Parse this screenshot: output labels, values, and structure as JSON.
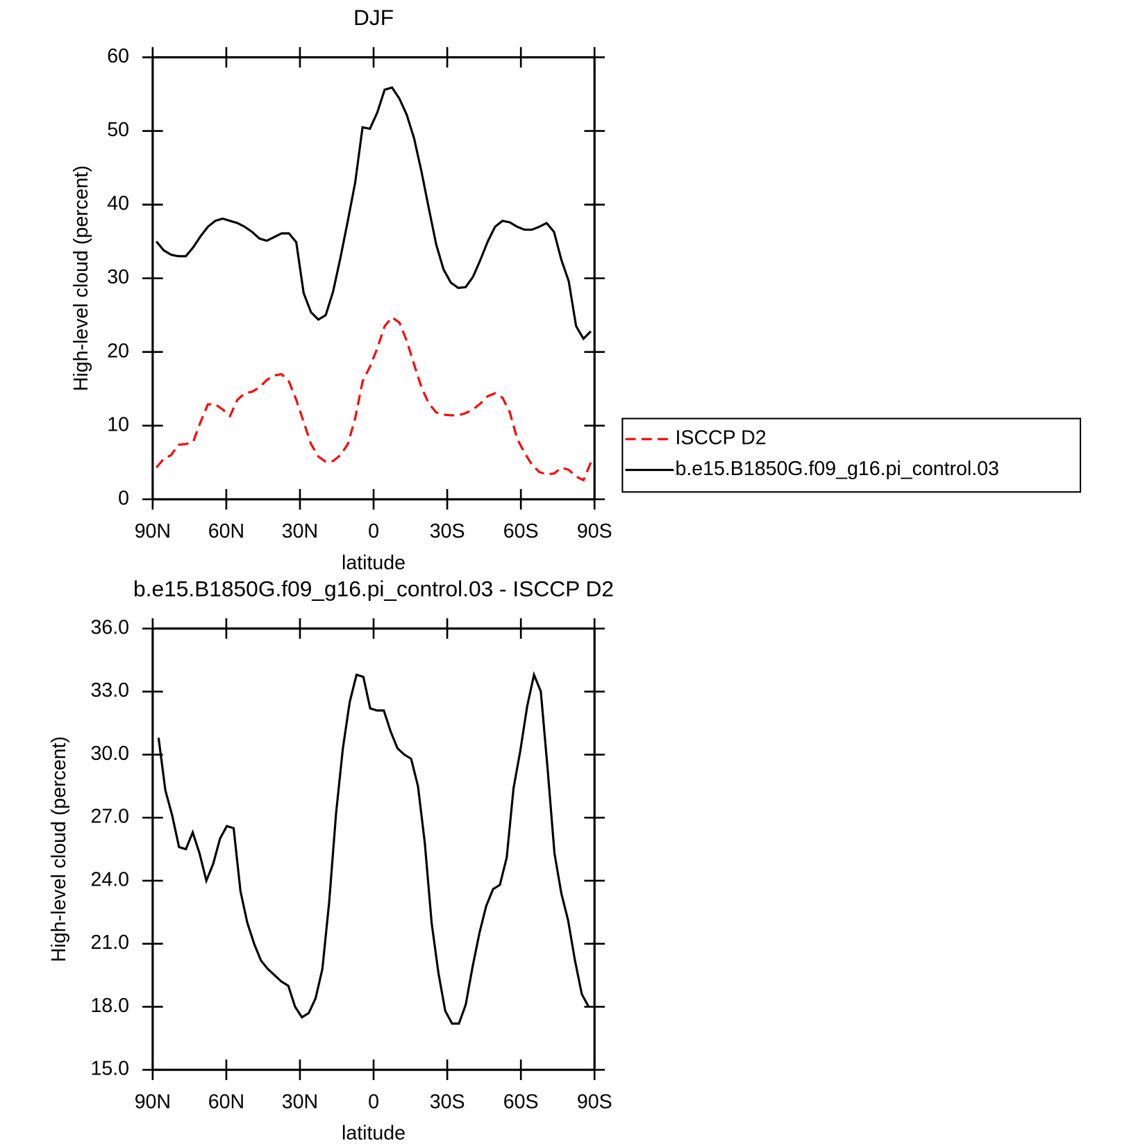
{
  "chart_data": [
    {
      "type": "line",
      "title": "DJF",
      "xlabel": "latitude",
      "ylabel": "High-level cloud (percent)",
      "xlim": [
        90,
        -90
      ],
      "xticks": [
        {
          "value": 90,
          "label": "90N"
        },
        {
          "value": 60,
          "label": "60N"
        },
        {
          "value": 30,
          "label": "30N"
        },
        0,
        {
          "value": -30,
          "label": "30S"
        },
        {
          "value": -60,
          "label": "60S"
        },
        {
          "value": -90,
          "label": "90S"
        }
      ],
      "ylim": [
        0,
        60
      ],
      "yticks": [
        0,
        10,
        20,
        30,
        40,
        50,
        60
      ],
      "legend": "right",
      "x": [
        88.5,
        85.5,
        82.5,
        79.5,
        76.5,
        73.5,
        70.5,
        67.5,
        64.5,
        61.5,
        58.5,
        55.5,
        52.5,
        49.5,
        46.5,
        43.5,
        40.5,
        37.5,
        34.5,
        31.5,
        28.5,
        25.5,
        22.5,
        19.5,
        16.5,
        13.5,
        10.5,
        7.5,
        4.5,
        1.5,
        -1.5,
        -4.5,
        -7.5,
        -10.5,
        -13.5,
        -16.5,
        -19.5,
        -22.5,
        -25.5,
        -28.5,
        -31.5,
        -34.5,
        -37.5,
        -40.5,
        -43.5,
        -46.5,
        -49.5,
        -52.5,
        -55.5,
        -58.5,
        -61.5,
        -64.5,
        -67.5,
        -70.5,
        -73.5,
        -76.5,
        -79.5,
        -82.5,
        -85.5,
        -88.5
      ],
      "series": [
        {
          "name": "ISCCP D2",
          "color": "#ff0000",
          "dash": "dashed",
          "values": [
            4.3,
            5.5,
            6.0,
            7.4,
            7.5,
            7.8,
            10.5,
            12.9,
            12.9,
            12.2,
            11.3,
            13.5,
            14.4,
            14.6,
            15.2,
            16.2,
            16.8,
            17.0,
            16.0,
            13.5,
            10.5,
            7.5,
            5.8,
            5.1,
            5.2,
            6.0,
            7.5,
            11.0,
            16.0,
            18.0,
            20.5,
            23.5,
            24.7,
            24.0,
            21.5,
            18.3,
            15.2,
            13.0,
            11.8,
            11.5,
            11.4,
            11.4,
            11.7,
            12.2,
            13.0,
            14.0,
            14.4,
            13.8,
            11.8,
            8.2,
            6.3,
            4.7,
            3.7,
            3.4,
            3.5,
            4.3,
            4.0,
            3.1,
            2.6,
            5.0
          ]
        },
        {
          "name": "b.e15.B1850G.f09_g16.pi_control.03",
          "color": "#000000",
          "dash": "solid",
          "values": [
            35.0,
            33.8,
            33.2,
            33.0,
            33.0,
            34.2,
            35.7,
            37.0,
            37.8,
            38.1,
            37.8,
            37.5,
            37.0,
            36.3,
            35.4,
            35.1,
            35.6,
            36.1,
            36.1,
            34.9,
            28.0,
            25.4,
            24.4,
            25.0,
            28.2,
            32.8,
            37.8,
            43.0,
            50.5,
            50.3,
            52.5,
            55.6,
            55.9,
            54.4,
            52.2,
            49.0,
            44.5,
            39.5,
            34.6,
            31.2,
            29.4,
            28.7,
            28.8,
            30.2,
            32.5,
            35.0,
            37.0,
            37.8,
            37.6,
            37.0,
            36.6,
            36.6,
            37.0,
            37.5,
            36.3,
            32.5,
            29.6,
            23.5,
            21.8,
            22.8
          ]
        }
      ]
    },
    {
      "type": "line",
      "title": "b.e15.B1850G.f09_g16.pi_control.03 - ISCCP D2",
      "xlabel": "latitude",
      "ylabel": "High-level cloud (percent)",
      "xlim": [
        90,
        -90
      ],
      "xticks": [
        {
          "value": 90,
          "label": "90N"
        },
        {
          "value": 60,
          "label": "60N"
        },
        {
          "value": 30,
          "label": "30N"
        },
        0,
        {
          "value": -30,
          "label": "30S"
        },
        {
          "value": -60,
          "label": "60S"
        },
        {
          "value": -90,
          "label": "90S"
        }
      ],
      "ylim": [
        15,
        36
      ],
      "yticks": [
        {
          "value": 15,
          "label": "15.0"
        },
        {
          "value": 18,
          "label": "18.0"
        },
        {
          "value": 21,
          "label": "21.0"
        },
        {
          "value": 24,
          "label": "24.0"
        },
        {
          "value": 27,
          "label": "27.0"
        },
        {
          "value": 30,
          "label": "30.0"
        },
        {
          "value": 33,
          "label": "33.0"
        },
        {
          "value": 36,
          "label": "36.0"
        }
      ],
      "x": [
        87.6,
        84.82,
        82.04,
        79.26,
        76.48,
        73.69,
        70.91,
        68.13,
        65.35,
        62.57,
        59.79,
        57.01,
        54.23,
        51.45,
        48.67,
        45.88,
        43.1,
        40.32,
        37.54,
        34.76,
        31.98,
        29.2,
        26.42,
        23.64,
        20.86,
        18.08,
        15.29,
        12.51,
        9.73,
        6.95,
        4.17,
        1.39,
        -1.39,
        -4.17,
        -6.95,
        -9.73,
        -12.51,
        -15.29,
        -18.08,
        -20.86,
        -23.64,
        -26.42,
        -29.2,
        -31.98,
        -34.76,
        -37.54,
        -40.32,
        -43.1,
        -45.88,
        -48.67,
        -51.45,
        -54.23,
        -57.01,
        -59.79,
        -62.57,
        -65.35,
        -68.13,
        -70.91,
        -73.69,
        -76.48,
        -79.26,
        -82.04,
        -84.82,
        -87.6
      ],
      "series": [
        {
          "color": "#000000",
          "dash": "solid",
          "values": [
            30.8,
            28.3,
            27.1,
            25.6,
            25.5,
            26.3,
            25.3,
            24.0,
            24.8,
            26.0,
            26.6,
            26.5,
            23.5,
            22.0,
            21.0,
            20.2,
            19.8,
            19.5,
            19.2,
            19.0,
            18.0,
            17.5,
            17.7,
            18.4,
            19.8,
            23.0,
            27.2,
            30.3,
            32.5,
            33.8,
            33.7,
            32.2,
            32.1,
            32.1,
            31.1,
            30.3,
            30.0,
            29.8,
            28.5,
            25.8,
            22.0,
            19.6,
            17.8,
            17.2,
            17.2,
            18.1,
            19.9,
            21.5,
            22.8,
            23.6,
            23.8,
            25.1,
            28.4,
            30.2,
            32.3,
            33.8,
            33.0,
            29.3,
            25.3,
            23.4,
            22.1,
            20.2,
            18.6,
            18.0
          ]
        }
      ]
    }
  ]
}
